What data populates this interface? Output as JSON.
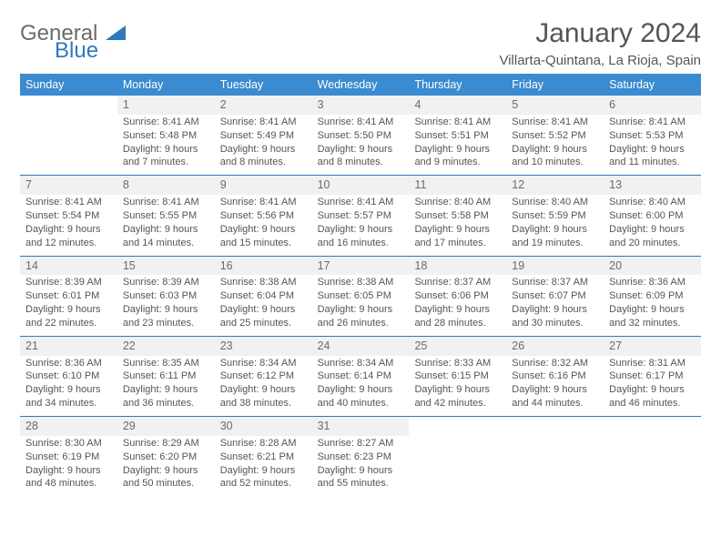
{
  "brand": {
    "part1": "General",
    "part2": "Blue",
    "color1": "#6b6b6b",
    "color2": "#2f78bd"
  },
  "title": "January 2024",
  "subtitle": "Villarta-Quintana, La Rioja, Spain",
  "header_bg": "#3a8bd0",
  "divider_color": "#2f78bd",
  "daynum_bg": "#f1f1f1",
  "text_color": "#555555",
  "weekdays": [
    "Sunday",
    "Monday",
    "Tuesday",
    "Wednesday",
    "Thursday",
    "Friday",
    "Saturday"
  ],
  "weeks": [
    [
      null,
      {
        "n": "1",
        "sr": "Sunrise: 8:41 AM",
        "ss": "Sunset: 5:48 PM",
        "d1": "Daylight: 9 hours",
        "d2": "and 7 minutes."
      },
      {
        "n": "2",
        "sr": "Sunrise: 8:41 AM",
        "ss": "Sunset: 5:49 PM",
        "d1": "Daylight: 9 hours",
        "d2": "and 8 minutes."
      },
      {
        "n": "3",
        "sr": "Sunrise: 8:41 AM",
        "ss": "Sunset: 5:50 PM",
        "d1": "Daylight: 9 hours",
        "d2": "and 8 minutes."
      },
      {
        "n": "4",
        "sr": "Sunrise: 8:41 AM",
        "ss": "Sunset: 5:51 PM",
        "d1": "Daylight: 9 hours",
        "d2": "and 9 minutes."
      },
      {
        "n": "5",
        "sr": "Sunrise: 8:41 AM",
        "ss": "Sunset: 5:52 PM",
        "d1": "Daylight: 9 hours",
        "d2": "and 10 minutes."
      },
      {
        "n": "6",
        "sr": "Sunrise: 8:41 AM",
        "ss": "Sunset: 5:53 PM",
        "d1": "Daylight: 9 hours",
        "d2": "and 11 minutes."
      }
    ],
    [
      {
        "n": "7",
        "sr": "Sunrise: 8:41 AM",
        "ss": "Sunset: 5:54 PM",
        "d1": "Daylight: 9 hours",
        "d2": "and 12 minutes."
      },
      {
        "n": "8",
        "sr": "Sunrise: 8:41 AM",
        "ss": "Sunset: 5:55 PM",
        "d1": "Daylight: 9 hours",
        "d2": "and 14 minutes."
      },
      {
        "n": "9",
        "sr": "Sunrise: 8:41 AM",
        "ss": "Sunset: 5:56 PM",
        "d1": "Daylight: 9 hours",
        "d2": "and 15 minutes."
      },
      {
        "n": "10",
        "sr": "Sunrise: 8:41 AM",
        "ss": "Sunset: 5:57 PM",
        "d1": "Daylight: 9 hours",
        "d2": "and 16 minutes."
      },
      {
        "n": "11",
        "sr": "Sunrise: 8:40 AM",
        "ss": "Sunset: 5:58 PM",
        "d1": "Daylight: 9 hours",
        "d2": "and 17 minutes."
      },
      {
        "n": "12",
        "sr": "Sunrise: 8:40 AM",
        "ss": "Sunset: 5:59 PM",
        "d1": "Daylight: 9 hours",
        "d2": "and 19 minutes."
      },
      {
        "n": "13",
        "sr": "Sunrise: 8:40 AM",
        "ss": "Sunset: 6:00 PM",
        "d1": "Daylight: 9 hours",
        "d2": "and 20 minutes."
      }
    ],
    [
      {
        "n": "14",
        "sr": "Sunrise: 8:39 AM",
        "ss": "Sunset: 6:01 PM",
        "d1": "Daylight: 9 hours",
        "d2": "and 22 minutes."
      },
      {
        "n": "15",
        "sr": "Sunrise: 8:39 AM",
        "ss": "Sunset: 6:03 PM",
        "d1": "Daylight: 9 hours",
        "d2": "and 23 minutes."
      },
      {
        "n": "16",
        "sr": "Sunrise: 8:38 AM",
        "ss": "Sunset: 6:04 PM",
        "d1": "Daylight: 9 hours",
        "d2": "and 25 minutes."
      },
      {
        "n": "17",
        "sr": "Sunrise: 8:38 AM",
        "ss": "Sunset: 6:05 PM",
        "d1": "Daylight: 9 hours",
        "d2": "and 26 minutes."
      },
      {
        "n": "18",
        "sr": "Sunrise: 8:37 AM",
        "ss": "Sunset: 6:06 PM",
        "d1": "Daylight: 9 hours",
        "d2": "and 28 minutes."
      },
      {
        "n": "19",
        "sr": "Sunrise: 8:37 AM",
        "ss": "Sunset: 6:07 PM",
        "d1": "Daylight: 9 hours",
        "d2": "and 30 minutes."
      },
      {
        "n": "20",
        "sr": "Sunrise: 8:36 AM",
        "ss": "Sunset: 6:09 PM",
        "d1": "Daylight: 9 hours",
        "d2": "and 32 minutes."
      }
    ],
    [
      {
        "n": "21",
        "sr": "Sunrise: 8:36 AM",
        "ss": "Sunset: 6:10 PM",
        "d1": "Daylight: 9 hours",
        "d2": "and 34 minutes."
      },
      {
        "n": "22",
        "sr": "Sunrise: 8:35 AM",
        "ss": "Sunset: 6:11 PM",
        "d1": "Daylight: 9 hours",
        "d2": "and 36 minutes."
      },
      {
        "n": "23",
        "sr": "Sunrise: 8:34 AM",
        "ss": "Sunset: 6:12 PM",
        "d1": "Daylight: 9 hours",
        "d2": "and 38 minutes."
      },
      {
        "n": "24",
        "sr": "Sunrise: 8:34 AM",
        "ss": "Sunset: 6:14 PM",
        "d1": "Daylight: 9 hours",
        "d2": "and 40 minutes."
      },
      {
        "n": "25",
        "sr": "Sunrise: 8:33 AM",
        "ss": "Sunset: 6:15 PM",
        "d1": "Daylight: 9 hours",
        "d2": "and 42 minutes."
      },
      {
        "n": "26",
        "sr": "Sunrise: 8:32 AM",
        "ss": "Sunset: 6:16 PM",
        "d1": "Daylight: 9 hours",
        "d2": "and 44 minutes."
      },
      {
        "n": "27",
        "sr": "Sunrise: 8:31 AM",
        "ss": "Sunset: 6:17 PM",
        "d1": "Daylight: 9 hours",
        "d2": "and 46 minutes."
      }
    ],
    [
      {
        "n": "28",
        "sr": "Sunrise: 8:30 AM",
        "ss": "Sunset: 6:19 PM",
        "d1": "Daylight: 9 hours",
        "d2": "and 48 minutes."
      },
      {
        "n": "29",
        "sr": "Sunrise: 8:29 AM",
        "ss": "Sunset: 6:20 PM",
        "d1": "Daylight: 9 hours",
        "d2": "and 50 minutes."
      },
      {
        "n": "30",
        "sr": "Sunrise: 8:28 AM",
        "ss": "Sunset: 6:21 PM",
        "d1": "Daylight: 9 hours",
        "d2": "and 52 minutes."
      },
      {
        "n": "31",
        "sr": "Sunrise: 8:27 AM",
        "ss": "Sunset: 6:23 PM",
        "d1": "Daylight: 9 hours",
        "d2": "and 55 minutes."
      },
      null,
      null,
      null
    ]
  ]
}
